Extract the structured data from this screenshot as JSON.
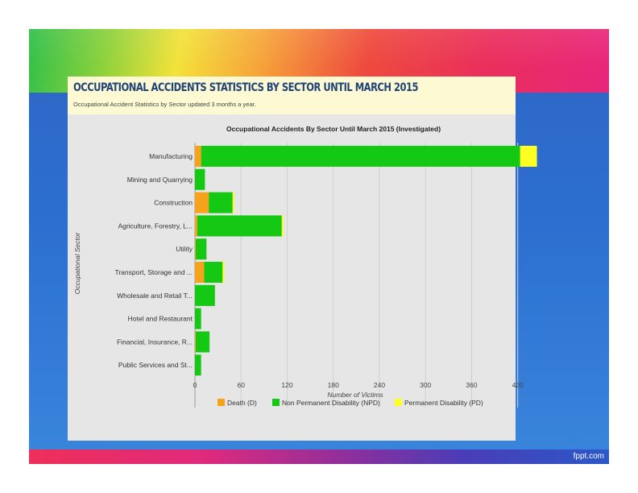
{
  "footer": {
    "logo_text": "fppt.com"
  },
  "panel": {
    "title": "OCCUPATIONAL ACCIDENTS STATISTICS BY SECTOR UNTIL MARCH 2015",
    "subtitle": "Occupational Accident Statistics by Sector updated 3 months a year."
  },
  "chart_data": {
    "type": "bar",
    "orientation": "horizontal",
    "stacked": true,
    "title": "Occupational Accidents By Sector Until March 2015 (Investigated)",
    "xlabel": "Number of Victims",
    "ylabel": "Occupational Sector",
    "xlim": [
      0,
      440
    ],
    "x_ticks": [
      0,
      60,
      120,
      180,
      240,
      300,
      360,
      420
    ],
    "x_tick_labels": [
      "0",
      "60",
      "120",
      "180",
      "240",
      "300",
      "360",
      "420"
    ],
    "grid": "vertical",
    "legend_position": "bottom",
    "categories": [
      "Manufacturing",
      "Mining and Quarrying",
      "Construction",
      "Agriculture, Forestry, L...",
      "Utility",
      "Transport, Storage and ...",
      "Wholesale and Retail T...",
      "Hotel and Restaurant",
      "Financial, Insurance, R...",
      "Public Services and St..."
    ],
    "series": [
      {
        "name": "Death (D)",
        "color": "#f7a21b",
        "values": [
          8,
          0,
          18,
          3,
          1,
          12,
          0,
          0,
          1,
          0
        ]
      },
      {
        "name": "Non Permanent Disability (NPD)",
        "color": "#14c814",
        "values": [
          415,
          13,
          31,
          110,
          14,
          24,
          26,
          8,
          18,
          8
        ]
      },
      {
        "name": "Permanent Disability (PD)",
        "color": "#ffff22",
        "values": [
          22,
          0,
          2,
          2,
          0,
          2,
          0,
          0,
          0,
          0
        ]
      }
    ]
  }
}
